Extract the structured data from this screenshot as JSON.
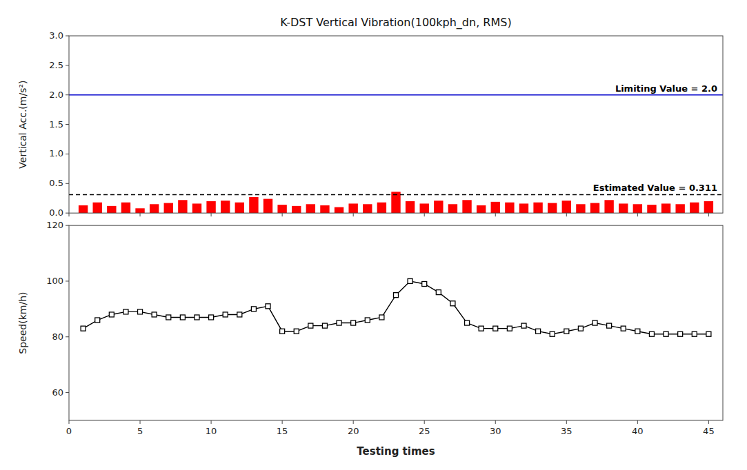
{
  "chart_data": [
    {
      "type": "bar",
      "title": "K-DST Vertical Vibration(100kph_dn, RMS)",
      "x": [
        1,
        2,
        3,
        4,
        5,
        6,
        7,
        8,
        9,
        10,
        11,
        12,
        13,
        14,
        15,
        16,
        17,
        18,
        19,
        20,
        21,
        22,
        23,
        24,
        25,
        26,
        27,
        28,
        29,
        30,
        31,
        32,
        33,
        34,
        35,
        36,
        37,
        38,
        39,
        40,
        41,
        42,
        43,
        44,
        45
      ],
      "values": [
        0.13,
        0.18,
        0.12,
        0.18,
        0.08,
        0.15,
        0.17,
        0.22,
        0.16,
        0.2,
        0.21,
        0.18,
        0.27,
        0.24,
        0.14,
        0.12,
        0.15,
        0.13,
        0.1,
        0.16,
        0.15,
        0.18,
        0.36,
        0.2,
        0.16,
        0.21,
        0.15,
        0.22,
        0.13,
        0.19,
        0.18,
        0.16,
        0.18,
        0.17,
        0.21,
        0.15,
        0.17,
        0.22,
        0.16,
        0.15,
        0.14,
        0.16,
        0.15,
        0.18,
        0.2
      ],
      "color": "#FF0000",
      "y_label": "Vertical Acc.(m/s²)",
      "ylim": [
        0.0,
        3.0
      ],
      "yticks": [
        {
          "value": 0.0,
          "label": "0.0"
        },
        0.5,
        {
          "value": 1.0,
          "label": "1.0"
        },
        1.5,
        {
          "value": 2.0,
          "label": "2.0"
        },
        2.5,
        {
          "value": 3.0,
          "label": "3.0"
        }
      ],
      "xlim": [
        0,
        46
      ],
      "xticks": [
        0,
        5,
        10,
        15,
        20,
        25,
        30,
        35,
        40,
        45
      ],
      "tick_labels": "y",
      "grid": false,
      "annotations": [
        {
          "text": "Limiting Value = 2.0",
          "value": 2.0,
          "color": "#0000CC",
          "line_style": "solid"
        },
        {
          "text": "Estimated Value = 0.311",
          "value": 0.311,
          "color": "#000000",
          "line_style": "dashed"
        }
      ]
    },
    {
      "type": "line",
      "x": [
        1,
        2,
        3,
        4,
        5,
        6,
        7,
        8,
        9,
        10,
        11,
        12,
        13,
        14,
        15,
        16,
        17,
        18,
        19,
        20,
        21,
        22,
        23,
        24,
        25,
        26,
        27,
        28,
        29,
        30,
        31,
        32,
        33,
        34,
        35,
        36,
        37,
        38,
        39,
        40,
        41,
        42,
        43,
        44,
        45
      ],
      "values": [
        83,
        86,
        88,
        89,
        89,
        88,
        87,
        87,
        87,
        87,
        88,
        88,
        90,
        91,
        82,
        82,
        84,
        84,
        85,
        85,
        86,
        87,
        95,
        100,
        99,
        96,
        92,
        85,
        83,
        83,
        83,
        84,
        82,
        81,
        82,
        83,
        85,
        84,
        83,
        82,
        81,
        81,
        81,
        81,
        81
      ],
      "color": "#000000",
      "marker": "square",
      "y_label": "Speed(km/h)",
      "x_label": "Testing times",
      "ylim": [
        50,
        120
      ],
      "yticks": [
        60,
        80,
        100,
        120
      ],
      "xlim": [
        0,
        46
      ],
      "xticks": [
        0,
        5,
        10,
        15,
        20,
        25,
        30,
        35,
        40,
        45
      ],
      "grid": false
    }
  ]
}
